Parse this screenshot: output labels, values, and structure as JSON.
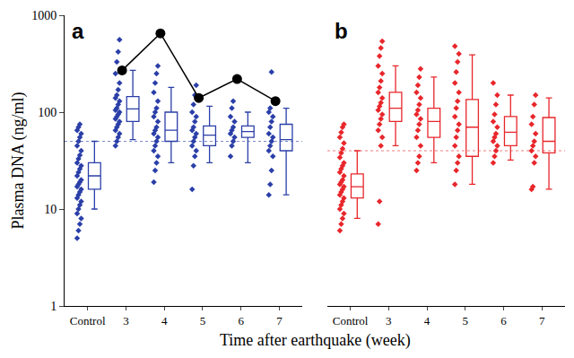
{
  "chart_data": {
    "type": "box",
    "y_label": "Plasma DNA (ng/ml)",
    "x_label": "Time after earthquake (week)",
    "log": "y",
    "ylim": [
      1,
      1000
    ],
    "yticks": [
      1,
      10,
      100,
      1000
    ],
    "panels": [
      {
        "title": "a",
        "color": "#2b3fa8",
        "categories": [
          "Control",
          "3",
          "4",
          "5",
          "6",
          "7"
        ],
        "q1": [
          16,
          80,
          50,
          45,
          55,
          40
        ],
        "median": [
          22,
          108,
          65,
          58,
          63,
          52
        ],
        "q3": [
          30,
          145,
          100,
          72,
          72,
          75
        ],
        "lower": [
          10,
          52,
          30,
          30,
          30,
          14
        ],
        "upper": [
          50,
          270,
          180,
          115,
          100,
          110
        ],
        "threshold": 50,
        "points": [
          [
            5,
            6,
            7,
            8,
            9,
            10,
            11,
            12,
            13,
            14,
            15,
            16,
            17,
            18,
            19,
            20,
            22,
            24,
            26,
            28,
            30,
            33,
            36,
            40,
            45,
            50,
            55,
            60,
            65,
            70,
            75
          ],
          [
            45,
            50,
            55,
            60,
            65,
            70,
            75,
            80,
            85,
            90,
            95,
            100,
            105,
            110,
            120,
            130,
            140,
            150,
            170,
            200,
            250,
            330,
            420,
            560
          ],
          [
            19,
            25,
            30,
            35,
            40,
            45,
            50,
            55,
            60,
            65,
            70,
            80,
            90,
            100,
            110,
            130,
            160,
            200,
            250,
            300
          ],
          [
            16,
            28,
            35,
            40,
            45,
            50,
            55,
            60,
            65,
            70,
            80,
            90,
            100,
            120,
            150,
            190
          ],
          [
            35,
            45,
            50,
            55,
            60,
            65,
            70,
            80,
            90,
            110,
            130
          ],
          [
            14,
            18,
            25,
            35,
            40,
            45,
            50,
            55,
            60,
            70,
            80,
            90,
            100,
            110,
            260
          ]
        ],
        "line": {
          "color": "#000000",
          "marker": "circle",
          "values": [
            null,
            270,
            650,
            140,
            220,
            130
          ]
        }
      },
      {
        "title": "b",
        "color": "#e8262b",
        "categories": [
          "Control",
          "3",
          "4",
          "5",
          "6",
          "7"
        ],
        "q1": [
          13,
          80,
          55,
          35,
          45,
          38
        ],
        "median": [
          17,
          110,
          80,
          70,
          62,
          50
        ],
        "q3": [
          23,
          160,
          110,
          135,
          90,
          88
        ],
        "lower": [
          8,
          45,
          30,
          18,
          32,
          16
        ],
        "upper": [
          40,
          300,
          230,
          390,
          150,
          140
        ],
        "threshold": 40,
        "points": [
          [
            6,
            7,
            8,
            9,
            10,
            11,
            12,
            13,
            14,
            15,
            16,
            17,
            18,
            19,
            20,
            22,
            24,
            26,
            28,
            30,
            34,
            38,
            42,
            48,
            55,
            62,
            70,
            75
          ],
          [
            7,
            12,
            45,
            55,
            65,
            75,
            85,
            95,
            105,
            115,
            125,
            140,
            160,
            180,
            210,
            250,
            300,
            380,
            460,
            540
          ],
          [
            25,
            30,
            35,
            45,
            55,
            65,
            75,
            85,
            95,
            105,
            120,
            140,
            160,
            190,
            230,
            280
          ],
          [
            18,
            25,
            30,
            35,
            45,
            55,
            65,
            75,
            90,
            110,
            130,
            160,
            200,
            260,
            330,
            400,
            480
          ],
          [
            30,
            35,
            40,
            45,
            50,
            55,
            60,
            70,
            80,
            95,
            120,
            150,
            200
          ],
          [
            16,
            17,
            30,
            35,
            40,
            45,
            50,
            60,
            75,
            90,
            120,
            150
          ]
        ]
      }
    ]
  }
}
